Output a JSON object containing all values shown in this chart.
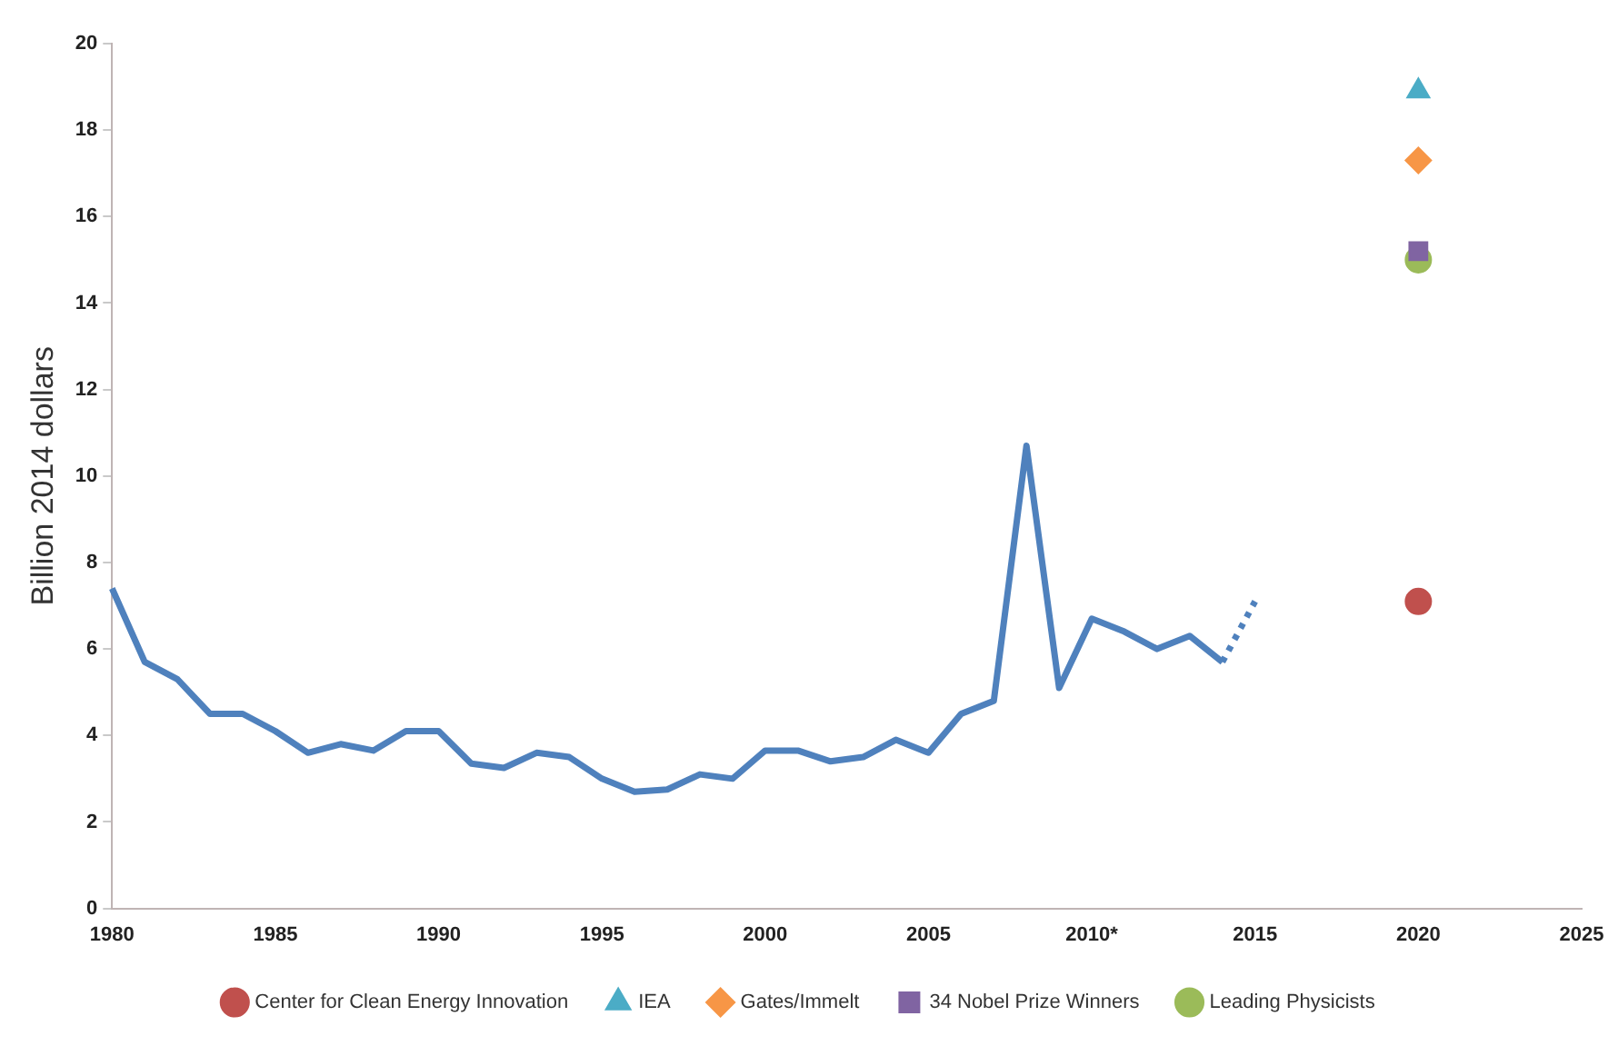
{
  "chart_data": {
    "type": "line",
    "ylabel": "Billion 2014 dollars",
    "categories": [
      "1980",
      null,
      null,
      null,
      null,
      "1985",
      null,
      null,
      null,
      null,
      "1990",
      null,
      null,
      null,
      null,
      "1995",
      null,
      null,
      null,
      null,
      "2000",
      null,
      null,
      null,
      null,
      "2005",
      null,
      null,
      null,
      null,
      "2010*",
      null,
      null,
      null,
      null,
      "2015",
      null,
      null,
      null,
      null,
      "2020",
      null,
      null,
      null,
      null,
      "2025"
    ],
    "ylim": [
      0,
      20
    ],
    "yticks": [
      0,
      2,
      4,
      6,
      8,
      10,
      12,
      14,
      16,
      18,
      20
    ],
    "grid": false,
    "legend": "bottom",
    "series": [
      {
        "color": "#4f81bd",
        "line_style": "solid",
        "marker": "none",
        "values": [
          7.4,
          5.7,
          5.3,
          4.5,
          4.5,
          4.1,
          3.6,
          3.8,
          3.65,
          4.1,
          4.1,
          3.35,
          3.25,
          3.6,
          3.5,
          3.0,
          2.7,
          2.75,
          3.1,
          3.0,
          3.65,
          3.65,
          3.4,
          3.5,
          3.9,
          3.6,
          4.5,
          4.8,
          10.7,
          5.1,
          6.7,
          6.4,
          6.0,
          6.3,
          5.7,
          null,
          null,
          null,
          null,
          null,
          null,
          null,
          null,
          null,
          null,
          null
        ]
      },
      {
        "color": "#4f81bd",
        "line_style": "dotted",
        "marker": "none",
        "values": [
          null,
          null,
          null,
          null,
          null,
          null,
          null,
          null,
          null,
          null,
          null,
          null,
          null,
          null,
          null,
          null,
          null,
          null,
          null,
          null,
          null,
          null,
          null,
          null,
          null,
          null,
          null,
          null,
          null,
          null,
          null,
          null,
          null,
          null,
          5.7,
          7.1,
          null,
          null,
          null,
          null,
          null,
          null,
          null,
          null,
          null,
          null
        ]
      },
      {
        "type": "scatter",
        "name": "Center for Clean Energy Innovation",
        "color": "#c0504d",
        "marker": "circle",
        "values": [
          null,
          null,
          null,
          null,
          null,
          null,
          null,
          null,
          null,
          null,
          null,
          null,
          null,
          null,
          null,
          null,
          null,
          null,
          null,
          null,
          null,
          null,
          null,
          null,
          null,
          null,
          null,
          null,
          null,
          null,
          null,
          null,
          null,
          null,
          null,
          null,
          null,
          null,
          null,
          null,
          7.1,
          null,
          null,
          null,
          null,
          null
        ]
      },
      {
        "type": "scatter",
        "name": "IEA",
        "color": "#4bacc6",
        "marker": "triangle",
        "values": [
          null,
          null,
          null,
          null,
          null,
          null,
          null,
          null,
          null,
          null,
          null,
          null,
          null,
          null,
          null,
          null,
          null,
          null,
          null,
          null,
          null,
          null,
          null,
          null,
          null,
          null,
          null,
          null,
          null,
          null,
          null,
          null,
          null,
          null,
          null,
          null,
          null,
          null,
          null,
          null,
          18.9,
          null,
          null,
          null,
          null,
          null
        ]
      },
      {
        "type": "scatter",
        "name": "Gates/Immelt",
        "color": "#f79646",
        "marker": "diamond",
        "values": [
          null,
          null,
          null,
          null,
          null,
          null,
          null,
          null,
          null,
          null,
          null,
          null,
          null,
          null,
          null,
          null,
          null,
          null,
          null,
          null,
          null,
          null,
          null,
          null,
          null,
          null,
          null,
          null,
          null,
          null,
          null,
          null,
          null,
          null,
          null,
          null,
          null,
          null,
          null,
          null,
          17.3,
          null,
          null,
          null,
          null,
          null
        ]
      },
      {
        "type": "scatter",
        "name": "34 Nobel Prize Winners",
        "color": "#8064a2",
        "marker": "square",
        "values": [
          null,
          null,
          null,
          null,
          null,
          null,
          null,
          null,
          null,
          null,
          null,
          null,
          null,
          null,
          null,
          null,
          null,
          null,
          null,
          null,
          null,
          null,
          null,
          null,
          null,
          null,
          null,
          null,
          null,
          null,
          null,
          null,
          null,
          null,
          null,
          null,
          null,
          null,
          null,
          null,
          15.2,
          null,
          null,
          null,
          null,
          null
        ]
      },
      {
        "type": "scatter",
        "name": "Leading Physicists",
        "color": "#9bbb59",
        "marker": "circle",
        "values": [
          null,
          null,
          null,
          null,
          null,
          null,
          null,
          null,
          null,
          null,
          null,
          null,
          null,
          null,
          null,
          null,
          null,
          null,
          null,
          null,
          null,
          null,
          null,
          null,
          null,
          null,
          null,
          null,
          null,
          null,
          null,
          null,
          null,
          null,
          null,
          null,
          null,
          null,
          null,
          null,
          15.0,
          null,
          null,
          null,
          null,
          null
        ]
      }
    ]
  }
}
